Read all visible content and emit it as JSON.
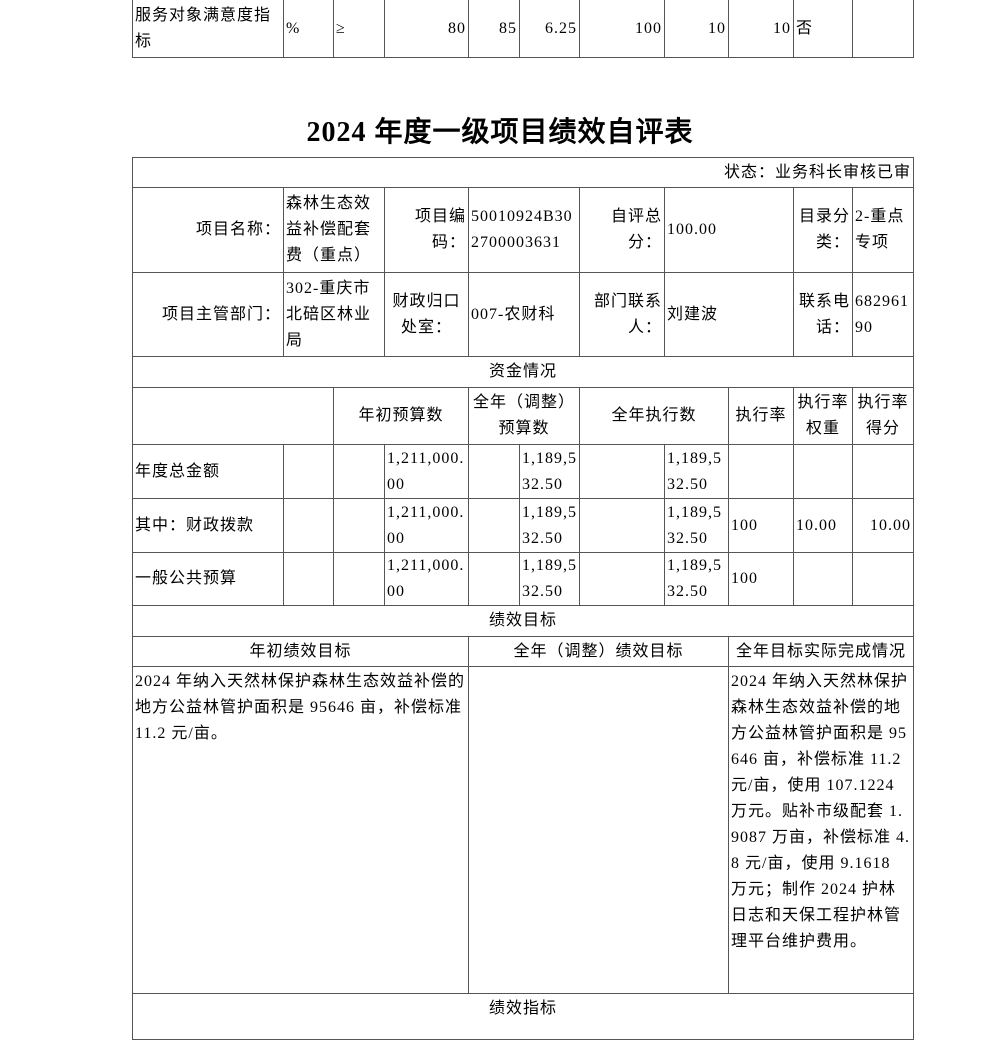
{
  "prev_row": {
    "label": "服务对象满意度指标",
    "unit": "%",
    "op": "≥",
    "v1": "80",
    "v2": "85",
    "v3": "6.25",
    "v4": "100",
    "v5": "10",
    "v6": "10",
    "v7": "否",
    "v8": ""
  },
  "title": "2024 年度一级项目绩效自评表",
  "status": "状态：业务科长审核已审",
  "info": {
    "name_label": "项目名称：",
    "name": "森林生态效益补偿配套费（重点）",
    "code_label": "项目编码：",
    "code": "50010924B302700003631",
    "score_label": "自评总分：",
    "score": "100.00",
    "cat_label": "目录分类：",
    "cat": "2-重点专项",
    "dept_label": "项目主管部门：",
    "dept": "302-重庆市北碚区林业局",
    "office_label": "财政归口处室：",
    "office": "007-农财科",
    "contact_label": "部门联系人：",
    "contact": "刘建波",
    "phone_label": "联系电话：",
    "phone": "68296190"
  },
  "funds": {
    "section": "资金情况",
    "headers": [
      "年初预算数",
      "全年（调整）预算数",
      "全年执行数",
      "执行率",
      "执行率权重",
      "执行率得分"
    ],
    "rows": [
      {
        "label": "年度总金额",
        "initial": "1,211,000.00",
        "adjusted": "1,189,532.50",
        "executed": "1,189,532.50",
        "rate": "",
        "weight": "",
        "score": ""
      },
      {
        "label": "其中：财政拨款",
        "initial": "1,211,000.00",
        "adjusted": "1,189,532.50",
        "executed": "1,189,532.50",
        "rate": "100",
        "weight": "10.00",
        "score": "10.00"
      },
      {
        "label": "一般公共预算",
        "initial": "1,211,000.00",
        "adjusted": "1,189,532.50",
        "executed": "1,189,532.50",
        "rate": "100",
        "weight": "",
        "score": ""
      }
    ]
  },
  "goals": {
    "section": "绩效目标",
    "headers": [
      "年初绩效目标",
      "全年（调整）绩效目标",
      "全年目标实际完成情况"
    ],
    "initial": "2024 年纳入天然林保护森林生态效益补偿的地方公益林管护面积是 95646 亩，补偿标准 11.2 元/亩。",
    "adjusted": "",
    "actual": "2024 年纳入天然林保护森林生态效益补偿的地方公益林管护面积是 95646 亩，补偿标准 11.2 元/亩，使用 107.1224 万元。贴补市级配套 1.9087 万亩，补偿标准 4.8 元/亩，使用 9.1618 万元；制作 2024 护林日志和天保工程护林管理平台维护费用。"
  },
  "indicators": {
    "section": "绩效指标"
  }
}
